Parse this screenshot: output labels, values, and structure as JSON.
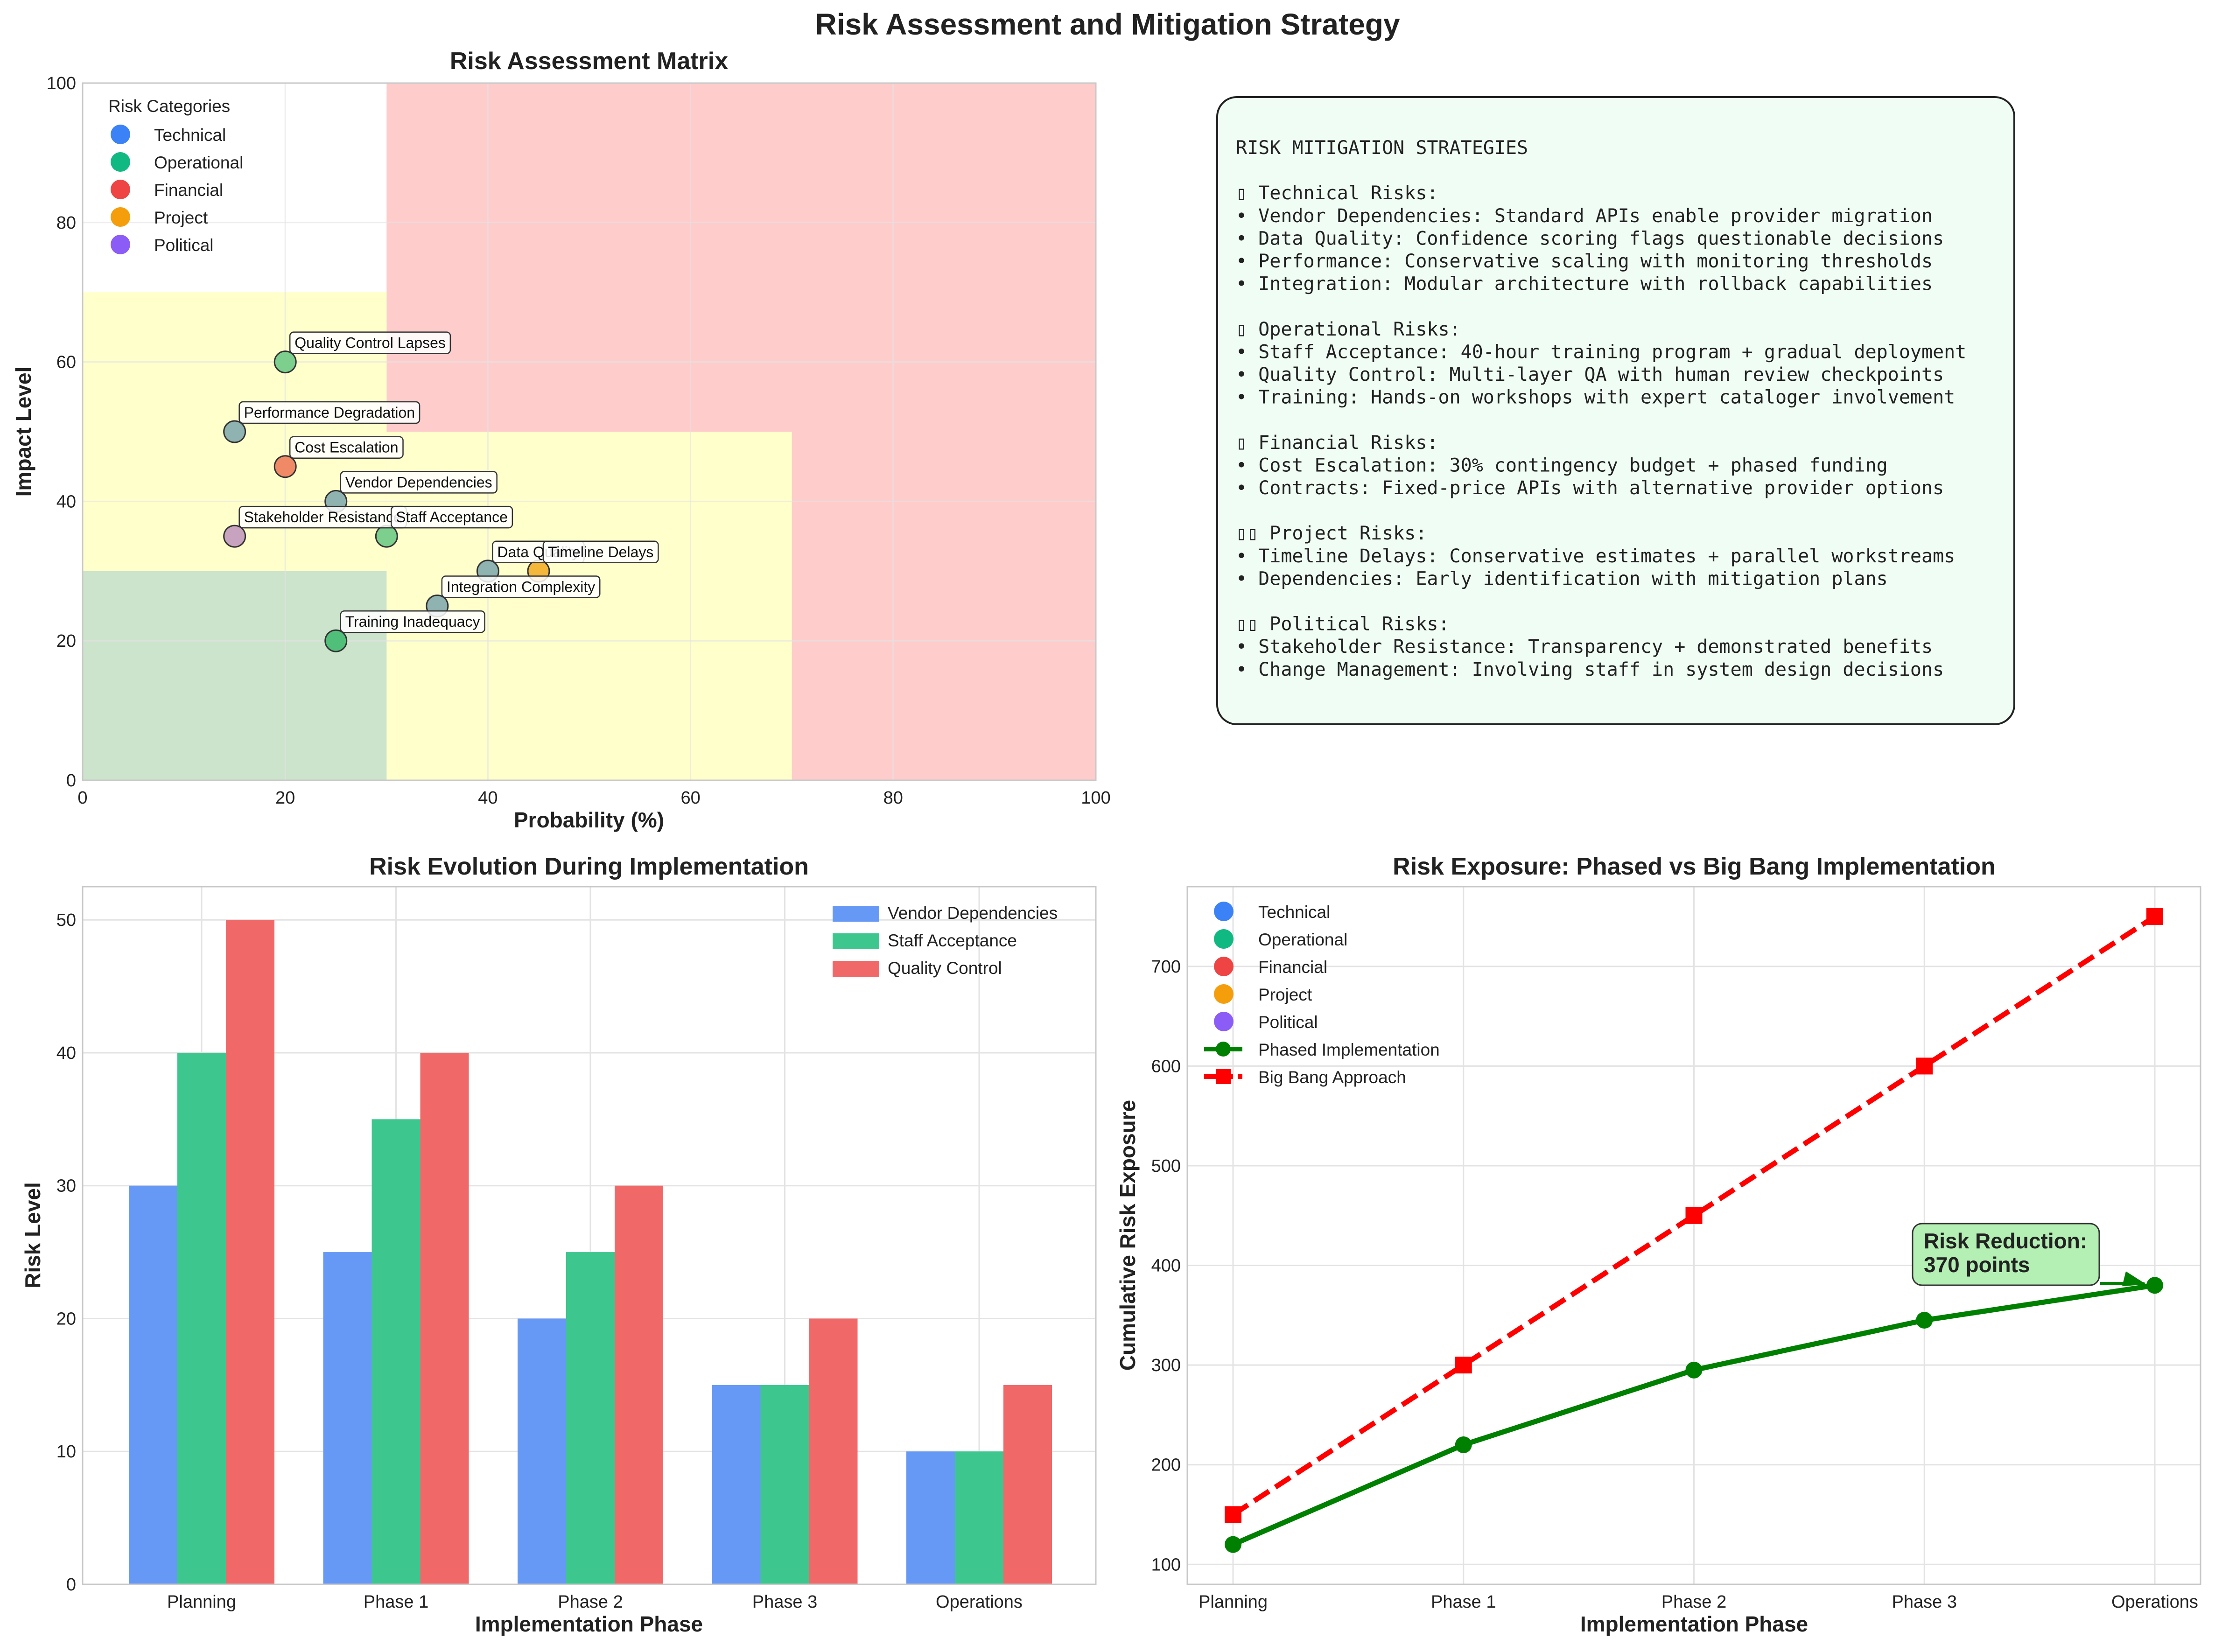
{
  "figure": {
    "title": "Risk Assessment and Mitigation Strategy",
    "colors": {
      "technical": "#3b82f6",
      "operational": "#10b981",
      "financial": "#ef4444",
      "project": "#f59e0b",
      "political": "#8b5cf6",
      "zone_high": "#ffcccc",
      "zone_medium": "#ffffcc",
      "zone_low": "#cce3cc",
      "phased": "#008000",
      "bigbang": "#ff0000",
      "strategy_bg": "#f0fdf4"
    }
  },
  "chart_data": [
    {
      "type": "scatter",
      "title": "Risk Assessment Matrix",
      "xlabel": "Probability (%)",
      "ylabel": "Impact Level",
      "xlim": [
        0,
        100
      ],
      "ylim": [
        0,
        100
      ],
      "xticks": [
        "0",
        "20",
        "40",
        "60",
        "80",
        "100"
      ],
      "yticks": [
        "0",
        "20",
        "40",
        "60",
        "80",
        "100"
      ],
      "grid": true,
      "legend_title": "Risk Categories",
      "legend_position": "top-left",
      "legend": [
        "Technical",
        "Operational",
        "Financial",
        "Project",
        "Political"
      ],
      "zones": [
        {
          "level": "high",
          "x": [
            30,
            100
          ],
          "y": [
            0,
            100
          ]
        },
        {
          "level": "medium",
          "x": [
            0,
            30
          ],
          "y": [
            30,
            70
          ]
        },
        {
          "level": "medium",
          "x": [
            30,
            70
          ],
          "y": [
            0,
            50
          ]
        },
        {
          "level": "low",
          "x": [
            0,
            30
          ],
          "y": [
            0,
            30
          ]
        }
      ],
      "points": [
        {
          "label": "Quality Control Lapses",
          "x": 20,
          "y": 60,
          "color": "#7ccf8d"
        },
        {
          "label": "Performance Degradation",
          "x": 15,
          "y": 50,
          "color": "#8fb3b0"
        },
        {
          "label": "Cost Escalation",
          "x": 20,
          "y": 45,
          "color": "#f08a66"
        },
        {
          "label": "Vendor Dependencies",
          "x": 25,
          "y": 40,
          "color": "#8fb3b0"
        },
        {
          "label": "Stakeholder Resistance",
          "x": 15,
          "y": 35,
          "color": "#c8a3c0"
        },
        {
          "label": "Staff Acceptance",
          "x": 30,
          "y": 35,
          "color": "#7ccf8d"
        },
        {
          "label": "Data Quality",
          "x": 40,
          "y": 30,
          "color": "#8fb3b0"
        },
        {
          "label": "Timeline Delays",
          "x": 45,
          "y": 30,
          "color": "#f5b73a"
        },
        {
          "label": "Integration Complexity",
          "x": 35,
          "y": 25,
          "color": "#8fb3b0"
        },
        {
          "label": "Training Inadequacy",
          "x": 25,
          "y": 20,
          "color": "#4fbf7a"
        }
      ]
    },
    {
      "type": "bar",
      "title": "Risk Evolution During Implementation",
      "xlabel": "Implementation Phase",
      "ylabel": "Risk Level",
      "categories": [
        "Planning",
        "Phase 1",
        "Phase 2",
        "Phase 3",
        "Operations"
      ],
      "ylim": [
        0,
        52.5
      ],
      "yticks": [
        "0",
        "10",
        "20",
        "30",
        "40",
        "50"
      ],
      "grid": true,
      "legend_position": "top-right",
      "series": [
        {
          "name": "Vendor Dependencies",
          "values": [
            30,
            25,
            20,
            15,
            10
          ],
          "color": "#6699f5"
        },
        {
          "name": "Staff Acceptance",
          "values": [
            40,
            35,
            25,
            15,
            10
          ],
          "color": "#3dc78f"
        },
        {
          "name": "Quality Control",
          "values": [
            50,
            40,
            30,
            20,
            15
          ],
          "color": "#f06868"
        }
      ]
    },
    {
      "type": "line",
      "title": "Risk Exposure: Phased vs Big Bang Implementation",
      "xlabel": "Implementation Phase",
      "ylabel": "Cumulative Risk Exposure",
      "categories": [
        "Planning",
        "Phase 1",
        "Phase 2",
        "Phase 3",
        "Operations"
      ],
      "ylim": [
        80,
        780
      ],
      "yticks": [
        "100",
        "200",
        "300",
        "400",
        "500",
        "600",
        "700"
      ],
      "grid": true,
      "legend_position": "top-left",
      "legend_categories": [
        "Technical",
        "Operational",
        "Financial",
        "Project",
        "Political"
      ],
      "series": [
        {
          "name": "Phased Implementation",
          "values": [
            120,
            220,
            295,
            345,
            380
          ],
          "color": "#008000",
          "style": "solid",
          "marker": "circle"
        },
        {
          "name": "Big Bang Approach",
          "values": [
            150,
            300,
            450,
            600,
            750
          ],
          "color": "#ff0000",
          "style": "dashed",
          "marker": "square"
        }
      ],
      "annotation": {
        "line1": "Risk Reduction:",
        "line2": "370 points",
        "x_index": 4,
        "y": 380
      }
    }
  ],
  "strategies": {
    "lines": [
      "RISK MITIGATION STRATEGIES",
      "",
      "▯ Technical Risks:",
      "• Vendor Dependencies: Standard APIs enable provider migration",
      "• Data Quality: Confidence scoring flags questionable decisions",
      "• Performance: Conservative scaling with monitoring thresholds",
      "• Integration: Modular architecture with rollback capabilities",
      "",
      "▯ Operational Risks:",
      "• Staff Acceptance: 40-hour training program + gradual deployment",
      "• Quality Control: Multi-layer QA with human review checkpoints",
      "• Training: Hands-on workshops with expert cataloger involvement",
      "",
      "▯ Financial Risks:",
      "• Cost Escalation: 30% contingency budget + phased funding",
      "• Contracts: Fixed-price APIs with alternative provider options",
      "",
      "▯▯ Project Risks:",
      "• Timeline Delays: Conservative estimates + parallel workstreams",
      "• Dependencies: Early identification with mitigation plans",
      "",
      "▯▯ Political Risks:",
      "• Stakeholder Resistance: Transparency + demonstrated benefits",
      "• Change Management: Involving staff in system design decisions"
    ]
  }
}
